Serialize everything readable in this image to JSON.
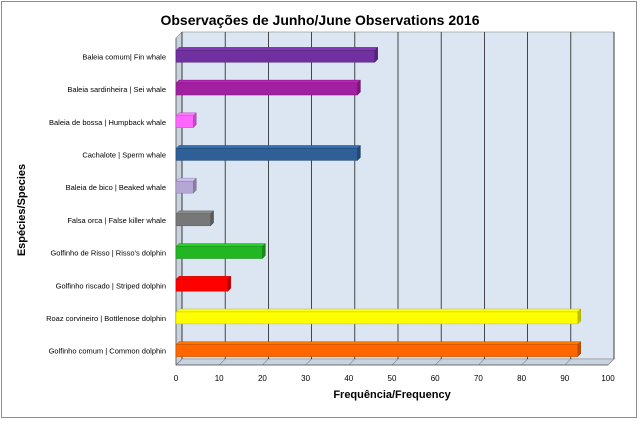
{
  "chart_data": {
    "type": "bar",
    "orientation": "horizontal",
    "title": "Observações de Junho/June  Observations 2016",
    "xlabel": "Frequência/Frequency",
    "ylabel": "Espécies/Species",
    "xlim": [
      0,
      100
    ],
    "xticks": [
      0,
      10,
      20,
      30,
      40,
      50,
      60,
      70,
      80,
      90,
      100
    ],
    "grid": true,
    "legend": "none",
    "categories": [
      "Baleia comum| Fin whale",
      "Baleia sardinheira | Sei whale",
      "Baleia de bossa | Humpback whale",
      "Cachalote | Sperm whale",
      "Baleia de bico | Beaked whale",
      "Falsa orca | False killer whale",
      "Golfinho de Risso | Risso's dolphin",
      "Golfinho riscado | Striped dolphin",
      "Roaz corvineiro | Bottlenose dolphin",
      "Golfinho comum | Common dolphin"
    ],
    "values": [
      46,
      42,
      4,
      42,
      4,
      8,
      20,
      12,
      93,
      93
    ],
    "colors": [
      "#7030a0",
      "#a020a0",
      "#ff66ff",
      "#2e5f97",
      "#b4a7d6",
      "#777777",
      "#22b622",
      "#ff0000",
      "#ffff00",
      "#ff6600"
    ],
    "plot_background": "#dce6f2"
  }
}
